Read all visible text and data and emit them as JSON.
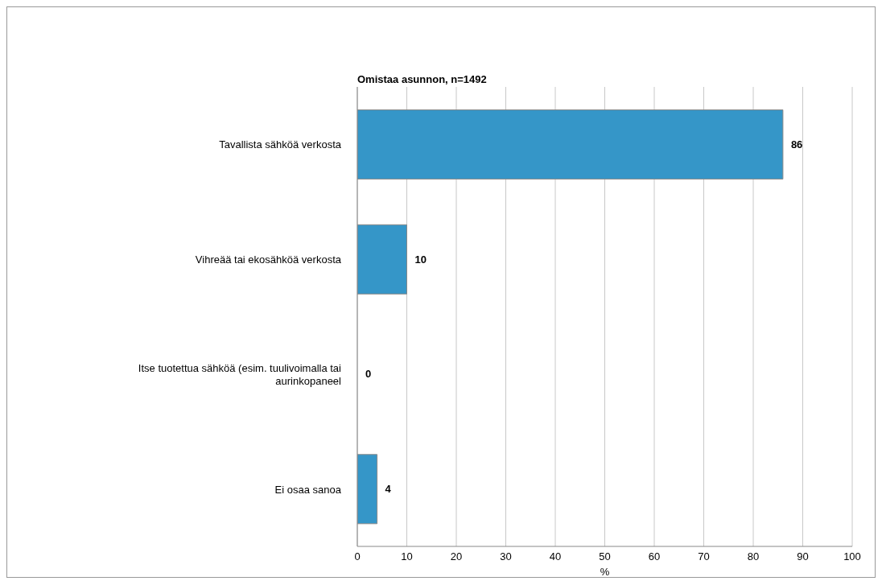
{
  "chart_data": {
    "type": "bar",
    "orientation": "horizontal",
    "title": "Omistaa asunnon, n=1492",
    "xlabel": "%",
    "categories": [
      "Tavallista sähköä verkosta",
      "Vihreää tai ekosähköä verkosta",
      "Itse tuotettua sähköä (esim. tuulivoimalla tai aurinkopaneel",
      "Ei osaa sanoa"
    ],
    "values": [
      86,
      10,
      0,
      4
    ],
    "color": "#3596c8",
    "data_labels": true,
    "xlim": [
      0,
      100
    ],
    "xticks": [
      0,
      10,
      20,
      30,
      40,
      50,
      60,
      70,
      80,
      90,
      100
    ],
    "grid": "x",
    "legend": false
  }
}
